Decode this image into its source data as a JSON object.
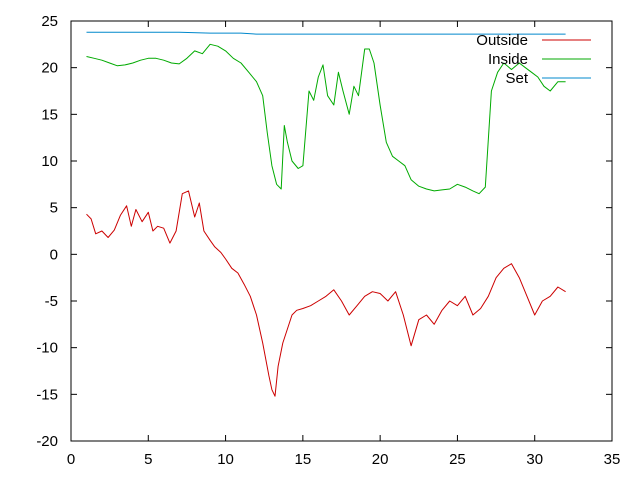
{
  "chart_data": {
    "type": "line",
    "title": "",
    "xlabel": "",
    "ylabel": "",
    "xlim": [
      0,
      35
    ],
    "ylim": [
      -20,
      25
    ],
    "xticks": [
      0,
      5,
      10,
      15,
      20,
      25,
      30,
      35
    ],
    "yticks": [
      -20,
      -15,
      -10,
      -5,
      0,
      5,
      10,
      15,
      20,
      25
    ],
    "grid": false,
    "legend_position": "top-right",
    "series": [
      {
        "name": "Outside",
        "color": "#cc0000",
        "x": [
          1,
          1.3,
          1.6,
          2,
          2.4,
          2.8,
          3.2,
          3.6,
          3.9,
          4.2,
          4.6,
          5,
          5.3,
          5.6,
          6,
          6.4,
          6.8,
          7.2,
          7.6,
          8,
          8.3,
          8.6,
          9,
          9.3,
          9.7,
          10,
          10.4,
          10.8,
          11.2,
          11.6,
          12,
          12.4,
          12.8,
          13,
          13.2,
          13.4,
          13.7,
          14,
          14.3,
          14.6,
          15,
          15.5,
          16,
          16.5,
          17,
          17.5,
          18,
          18.5,
          19,
          19.5,
          20,
          20.5,
          21,
          21.5,
          22,
          22.5,
          23,
          23.5,
          24,
          24.5,
          25,
          25.5,
          26,
          26.5,
          27,
          27.5,
          28,
          28.5,
          29,
          29.5,
          30,
          30.5,
          31,
          31.5,
          32
        ],
        "y": [
          4.3,
          3.8,
          2.2,
          2.5,
          1.8,
          2.6,
          4.2,
          5.2,
          3.0,
          4.8,
          3.5,
          4.5,
          2.5,
          3.0,
          2.8,
          1.2,
          2.5,
          6.5,
          6.8,
          4.0,
          5.5,
          2.5,
          1.5,
          0.8,
          0.2,
          -0.5,
          -1.5,
          -2.0,
          -3.2,
          -4.5,
          -6.5,
          -9.5,
          -13.0,
          -14.5,
          -15.2,
          -12.0,
          -9.5,
          -8.0,
          -6.5,
          -6.0,
          -5.8,
          -5.5,
          -5.0,
          -4.5,
          -3.8,
          -5.0,
          -6.5,
          -5.5,
          -4.5,
          -4.0,
          -4.2,
          -5.0,
          -4.0,
          -6.5,
          -9.8,
          -7.0,
          -6.5,
          -7.5,
          -6.0,
          -5.0,
          -5.5,
          -4.5,
          -6.5,
          -5.8,
          -4.5,
          -2.5,
          -1.5,
          -1.0,
          -2.5,
          -4.5,
          -6.5,
          -5.0,
          -4.5,
          -3.5,
          -4.0
        ]
      },
      {
        "name": "Inside",
        "color": "#00aa00",
        "x": [
          1,
          1.5,
          2,
          2.5,
          3,
          3.5,
          4,
          4.5,
          5,
          5.5,
          6,
          6.5,
          7,
          7.5,
          8,
          8.5,
          9,
          9.5,
          10,
          10.5,
          11,
          11.5,
          12,
          12.4,
          12.7,
          13,
          13.3,
          13.6,
          13.8,
          14,
          14.3,
          14.7,
          15,
          15.4,
          15.7,
          16,
          16.3,
          16.6,
          17,
          17.3,
          17.6,
          18,
          18.3,
          18.6,
          19,
          19.3,
          19.6,
          20,
          20.4,
          20.8,
          21.2,
          21.6,
          22,
          22.5,
          23,
          23.5,
          24,
          24.5,
          25,
          25.5,
          26,
          26.4,
          26.8,
          27.2,
          27.6,
          28,
          28.5,
          29,
          29.4,
          29.8,
          30.2,
          30.6,
          31,
          31.5,
          32
        ],
        "y": [
          21.2,
          21.0,
          20.8,
          20.5,
          20.2,
          20.3,
          20.5,
          20.8,
          21.0,
          21.0,
          20.8,
          20.5,
          20.4,
          21.0,
          21.8,
          21.5,
          22.5,
          22.3,
          21.8,
          21.0,
          20.5,
          19.5,
          18.5,
          17.0,
          13.0,
          9.5,
          7.5,
          7.0,
          13.8,
          12.0,
          10.0,
          9.2,
          9.5,
          17.5,
          16.5,
          19.0,
          20.3,
          17.0,
          16.0,
          19.5,
          17.5,
          15.0,
          18.0,
          17.0,
          22.0,
          22.0,
          20.5,
          16.0,
          12.0,
          10.5,
          10.0,
          9.5,
          8.0,
          7.3,
          7.0,
          6.8,
          6.9,
          7.0,
          7.5,
          7.2,
          6.8,
          6.5,
          7.2,
          17.5,
          19.5,
          20.5,
          19.8,
          20.5,
          20.0,
          19.5,
          19.0,
          18.0,
          17.5,
          18.5,
          18.5
        ]
      },
      {
        "name": "Set",
        "color": "#0088cc",
        "x": [
          1,
          3,
          5,
          7,
          9,
          11,
          12,
          13,
          15,
          17,
          19,
          21,
          23,
          25,
          27,
          29,
          31,
          32
        ],
        "y": [
          23.8,
          23.8,
          23.8,
          23.8,
          23.7,
          23.7,
          23.6,
          23.6,
          23.6,
          23.6,
          23.6,
          23.6,
          23.6,
          23.6,
          23.6,
          23.6,
          23.6,
          23.6
        ]
      }
    ]
  }
}
